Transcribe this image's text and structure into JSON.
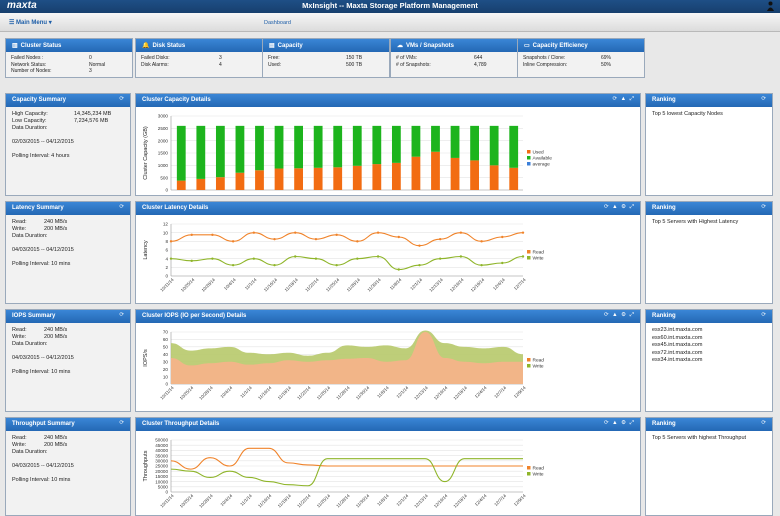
{
  "app": {
    "logo": "maxta",
    "title": "MxInsight -- Maxta Storage Platform Management"
  },
  "menu": {
    "main": "☰ Main Menu ▾",
    "dashboard": "Dashboard"
  },
  "status": [
    {
      "title": "Cluster Status",
      "icon": "bar-chart-icon",
      "rows": [
        [
          "Failed Nodes :",
          "0"
        ],
        [
          "Network Status:",
          "Normal"
        ],
        [
          "Number of Nodes:",
          "3"
        ]
      ]
    },
    {
      "title": "Disk Status",
      "icon": "bell-icon",
      "rows": [
        [
          "Failed Disks:",
          "3"
        ],
        [
          "Disk Alarms:",
          "4"
        ]
      ]
    },
    {
      "title": "Capacity",
      "icon": "disk-icon",
      "rows": [
        [
          "Free:",
          "150 TB"
        ],
        [
          "Used:",
          "500 TB"
        ]
      ]
    },
    {
      "title": "VMs / Snapshots",
      "icon": "cloud-icon",
      "rows": [
        [
          "# of VMs:",
          "644"
        ],
        [
          "# of Snapshots:",
          "4,789"
        ]
      ]
    },
    {
      "title": "Capacity Efficiency",
      "icon": "screen-icon",
      "rows": [
        [
          "Snapshots / Clone:",
          "69%"
        ],
        [
          "Inline Compression:",
          "50%"
        ]
      ]
    }
  ],
  "summaries": [
    {
      "title": "Capacity Summary",
      "rows": [
        [
          "High Capacity:",
          "14,345,234 MB"
        ],
        [
          "Low Capacity:",
          "7,234,576 MB"
        ],
        [
          "Data Duration:",
          ""
        ]
      ],
      "range": "02/03/2015 -- 04/12/2015",
      "polling": "Polling Interval: 4 hours"
    },
    {
      "title": "Latency Summary",
      "rows": [
        [
          "Read:",
          "240 MB/s"
        ],
        [
          "Write:",
          "200 MB/s"
        ],
        [
          "Data Duration:",
          ""
        ]
      ],
      "range": "04/03/2015 -- 04/12/2015",
      "polling": "Polling Interval: 10 mins"
    },
    {
      "title": "IOPS Summary",
      "rows": [
        [
          "Read:",
          "240 MB/s"
        ],
        [
          "Write:",
          "200 MB/s"
        ],
        [
          "Data Duration:",
          ""
        ]
      ],
      "range": "04/03/2015 -- 04/12/2015",
      "polling": "Polling Interval: 10 mins"
    },
    {
      "title": "Throughput Summary",
      "rows": [
        [
          "Read:",
          "240 MB/s"
        ],
        [
          "Write:",
          "200 MB/s"
        ],
        [
          "Data Duration:",
          ""
        ]
      ],
      "range": "04/03/2015 -- 04/12/2015",
      "polling": "Polling Interval: 10 mins"
    }
  ],
  "details": [
    {
      "title": "Cluster Capacity Details",
      "tools": "⟳ ▲ ⤢"
    },
    {
      "title": "Cluster Latency Details",
      "tools": "⟳ ▲ ⚙ ⤢"
    },
    {
      "title": "Cluster IOPS (IO per Second) Details",
      "tools": "⟳ ▲ ⚙ ⤢"
    },
    {
      "title": "Cluster Throughput Details",
      "tools": "⟳ ▲ ⚙ ⤢"
    }
  ],
  "rankings": [
    {
      "title": "Ranking",
      "lines": [
        "Top 5 lowest Capacity Nodes"
      ]
    },
    {
      "title": "Ranking",
      "lines": [
        "Top 5 Servers with Highest Latency"
      ]
    },
    {
      "title": "Ranking",
      "lines": [
        "esx23.int.maxta.com",
        "esx60.int.maxta.com",
        "esx45.int.maxta.com",
        "esx72.int.maxta.com",
        "esx34.int.maxta.com"
      ]
    },
    {
      "title": "Ranking",
      "lines": [
        "Top 5 Servers with highest Throughput"
      ]
    }
  ],
  "chart_data": [
    {
      "type": "bar",
      "title": "Cluster Capacity Details",
      "ylabel": "Cluster Capacity (GB)",
      "ylim": [
        0,
        3000
      ],
      "yticks": [
        0,
        500,
        1000,
        1500,
        2000,
        2500,
        3000
      ],
      "series": [
        {
          "name": "Used",
          "color": "#f26c12",
          "values": [
            380,
            450,
            520,
            700,
            800,
            870,
            880,
            900,
            920,
            980,
            1050,
            1100,
            1350,
            1550,
            1300,
            1200,
            1000,
            900
          ]
        },
        {
          "name": "Available",
          "color": "#1db41d",
          "values": [
            2220,
            2150,
            2080,
            1900,
            1800,
            1730,
            1720,
            1700,
            1680,
            1620,
            1550,
            1500,
            1250,
            1050,
            1300,
            1400,
            1600,
            1700
          ]
        },
        {
          "name": "average",
          "color": "#3b7fd9",
          "values": []
        }
      ],
      "legend": "right"
    },
    {
      "type": "line",
      "title": "Cluster Latency Details",
      "ylabel": "Latency",
      "ylim": [
        0,
        12
      ],
      "yticks": [
        0,
        2,
        4,
        6,
        8,
        10,
        12
      ],
      "categories": [
        "10/11/14",
        "10/25/14",
        "10/28/14",
        "10/4/14",
        "11/1/14",
        "11/16/14",
        "11/19/14",
        "11/22/14",
        "11/25/14",
        "11/28/14",
        "11/30/14",
        "11/8/14",
        "12/1/14",
        "12/13/14",
        "12/16/14",
        "12/19/14",
        "12/4/14",
        "12/7/14"
      ],
      "series": [
        {
          "name": "Read",
          "color": "#f0832a",
          "values": [
            8,
            9.5,
            9.5,
            8,
            10,
            8.5,
            10,
            8.5,
            9.5,
            8,
            10,
            9,
            7,
            8.5,
            10,
            8,
            9,
            10
          ]
        },
        {
          "name": "Write",
          "color": "#8fb52a",
          "values": [
            4,
            3.5,
            4,
            2.5,
            4,
            2.5,
            4.5,
            4,
            2.5,
            4,
            4.5,
            1.5,
            2.5,
            4,
            4.5,
            2.5,
            3,
            4.5
          ]
        }
      ],
      "legend": "right"
    },
    {
      "type": "area",
      "title": "Cluster IOPS (IO per Second) Details",
      "ylabel": "IOPS/s",
      "ylim": [
        0,
        70
      ],
      "yticks": [
        0,
        10,
        20,
        30,
        40,
        50,
        60,
        70
      ],
      "categories": [
        "10/11/14",
        "10/25/14",
        "10/28/14",
        "10/4/14",
        "11/1/14",
        "11/16/14",
        "11/19/14",
        "11/22/14",
        "11/25/14",
        "11/28/14",
        "11/30/14",
        "11/8/14",
        "12/1/14",
        "12/13/14",
        "12/16/14",
        "12/19/14",
        "12/4/14",
        "12/7/14",
        "12/9/14"
      ],
      "series": [
        {
          "name": "Read",
          "color": "#f7b28a",
          "values": [
            35,
            25,
            28,
            30,
            26,
            28,
            32,
            30,
            32,
            34,
            35,
            30,
            32,
            70,
            35,
            30,
            28,
            30,
            30
          ]
        },
        {
          "name": "Write",
          "color": "#b7c96a",
          "values": [
            55,
            45,
            48,
            50,
            42,
            40,
            42,
            38,
            42,
            52,
            50,
            52,
            48,
            72,
            55,
            50,
            48,
            50,
            40
          ]
        }
      ],
      "legend": "right"
    },
    {
      "type": "line",
      "title": "Cluster Throughput Details",
      "ylabel": "Throughputs",
      "ylim": [
        0,
        50000
      ],
      "yticks": [
        0,
        5000,
        10000,
        15000,
        20000,
        25000,
        30000,
        35000,
        40000,
        45000,
        50000
      ],
      "categories": [
        "10/11/14",
        "10/25/14",
        "10/28/14",
        "10/4/14",
        "11/1/14",
        "11/16/14",
        "11/19/14",
        "11/22/14",
        "11/25/14",
        "11/28/14",
        "11/30/14",
        "11/8/14",
        "12/1/14",
        "12/13/14",
        "12/16/14",
        "12/19/14",
        "12/4/14",
        "12/7/14",
        "12/9/14"
      ],
      "series": [
        {
          "name": "Read",
          "color": "#f0832a",
          "values": [
            30000,
            22000,
            33000,
            25000,
            42000,
            42000,
            28000,
            26000,
            25000,
            25000,
            25000,
            25000,
            25000,
            25000,
            25000,
            25000,
            25000,
            25000,
            25000
          ]
        },
        {
          "name": "Write",
          "color": "#8fb52a",
          "values": [
            22000,
            20000,
            14000,
            20000,
            14000,
            10000,
            7000,
            6000,
            32000,
            32000,
            32000,
            32000,
            32000,
            32000,
            10000,
            32000,
            32000,
            32000,
            32000
          ]
        }
      ],
      "legend": "right"
    }
  ]
}
